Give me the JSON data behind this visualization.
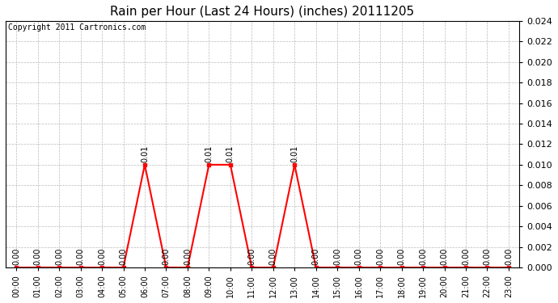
{
  "title": "Rain per Hour (Last 24 Hours) (inches) 20111205",
  "copyright_text": "Copyright 2011 Cartronics.com",
  "hours": [
    0,
    1,
    2,
    3,
    4,
    5,
    6,
    7,
    8,
    9,
    10,
    11,
    12,
    13,
    14,
    15,
    16,
    17,
    18,
    19,
    20,
    21,
    22,
    23
  ],
  "values": [
    0,
    0,
    0,
    0,
    0,
    0,
    0.01,
    0,
    0,
    0.01,
    0.01,
    0,
    0,
    0.01,
    0,
    0,
    0,
    0,
    0,
    0,
    0,
    0,
    0,
    0
  ],
  "line_color": "red",
  "bg_color": "white",
  "plot_bg_color": "white",
  "ylim_min": 0,
  "ylim_max": 0.024,
  "ytick_interval": 0.002,
  "grid_color": "#bbbbbb",
  "annotation_color": "black",
  "annotation_fontsize": 7,
  "xlabel_fontsize": 7,
  "ylabel_right_fontsize": 8,
  "title_fontsize": 11,
  "copyright_fontsize": 7,
  "marker": "s",
  "marker_size": 3
}
